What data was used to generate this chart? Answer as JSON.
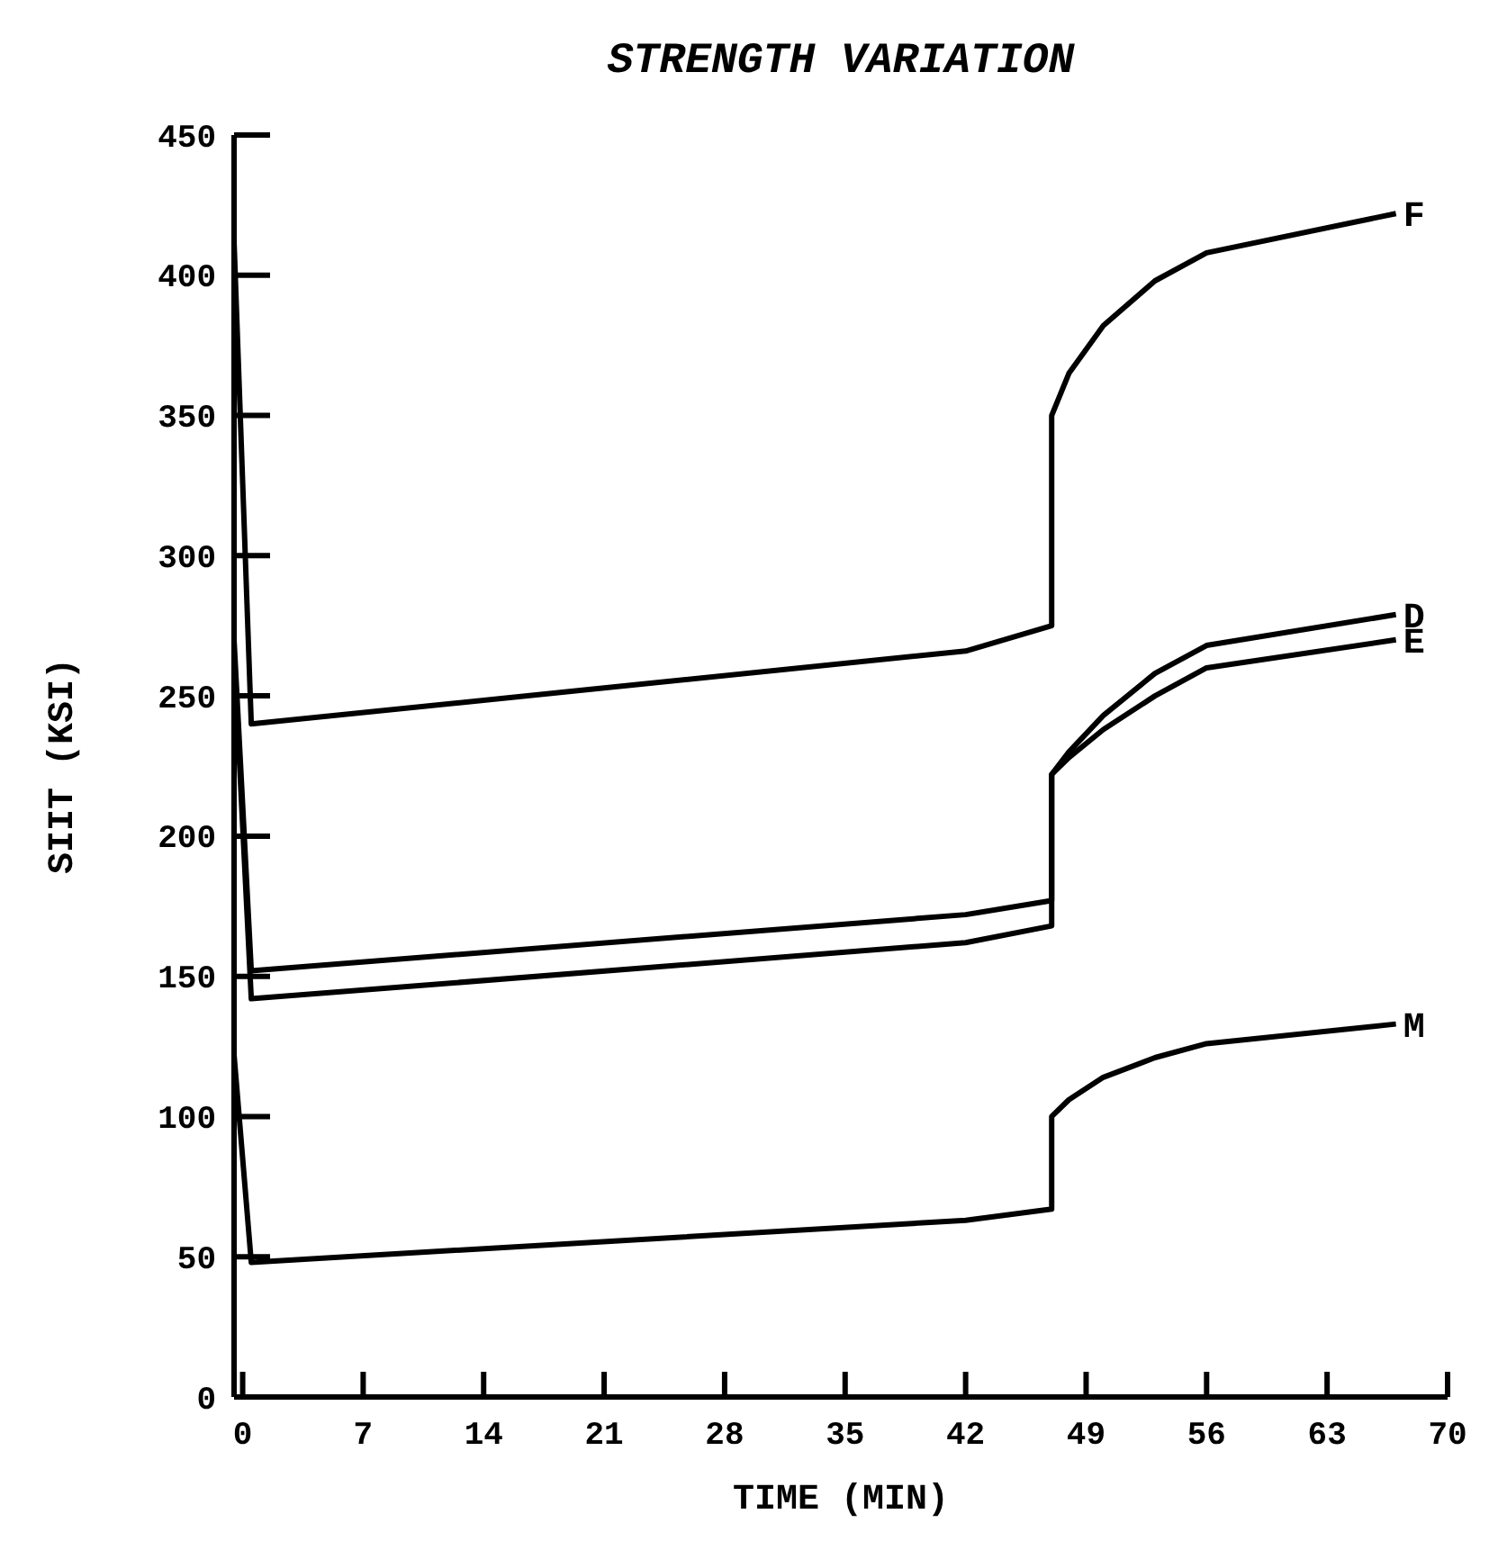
{
  "chart_data": {
    "type": "line",
    "title": "STRENGTH VARIATION",
    "xlabel": "TIME (MIN)",
    "ylabel": "SIIT (KSI)",
    "xlim": [
      -0.5,
      70
    ],
    "xticks": [
      0,
      7,
      14,
      21,
      28,
      35,
      42,
      49,
      56,
      63,
      70
    ],
    "ylim": [
      0,
      450
    ],
    "yticks": [
      0,
      50,
      100,
      150,
      200,
      250,
      300,
      350,
      400,
      450
    ],
    "grid": false,
    "marker": "none",
    "line_style": "solid",
    "series": [
      {
        "name": "F",
        "color": "#000000",
        "x": [
          -0.5,
          0.5,
          42,
          47,
          47,
          48,
          50,
          53,
          56,
          67
        ],
        "values": [
          412,
          240,
          266,
          275,
          350,
          365,
          382,
          398,
          408,
          422
        ]
      },
      {
        "name": "D",
        "color": "#000000",
        "x": [
          -0.5,
          0.5,
          42,
          47,
          47,
          48,
          50,
          53,
          56,
          67
        ],
        "values": [
          270,
          152,
          172,
          177,
          222,
          230,
          243,
          258,
          268,
          279
        ]
      },
      {
        "name": "E",
        "color": "#000000",
        "x": [
          -0.5,
          0.5,
          42,
          47,
          47,
          48,
          50,
          53,
          56,
          67
        ],
        "values": [
          265,
          142,
          162,
          168,
          222,
          228,
          238,
          250,
          260,
          270
        ]
      },
      {
        "name": "M",
        "color": "#000000",
        "x": [
          -0.5,
          0.5,
          42,
          47,
          47,
          48,
          50,
          53,
          56,
          67
        ],
        "values": [
          122,
          48,
          63,
          67,
          100,
          106,
          114,
          121,
          126,
          133
        ]
      }
    ]
  }
}
